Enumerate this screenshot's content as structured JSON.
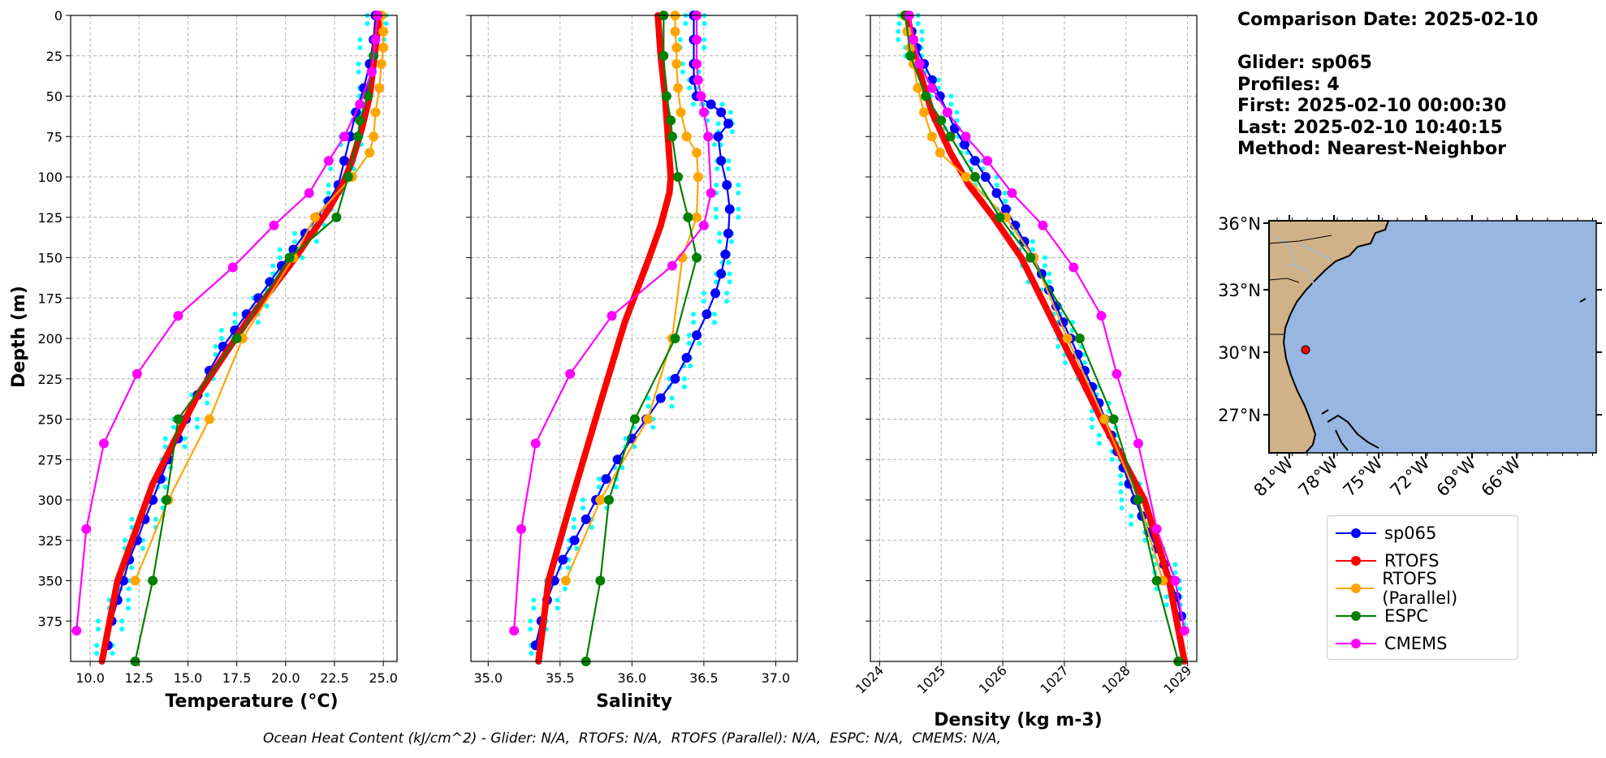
{
  "info": {
    "comparison_date": "Comparison Date: 2025-02-10",
    "glider": "Glider: sp065",
    "profiles": "Profiles: 4",
    "first": "First: 2025-02-10 00:00:30",
    "last": "Last: 2025-02-10 10:40:15",
    "method": "Method: Nearest-Neighbor"
  },
  "footer": "Ocean Heat Content (kJ/cm^2) - Glider: N/A,  RTOFS: N/A,  RTOFS (Parallel): N/A,  ESPC: N/A,  CMEMS: N/A,",
  "legend": [
    {
      "name": "sp065",
      "color": "#0000ff"
    },
    {
      "name": "RTOFS",
      "color": "#ff0000"
    },
    {
      "name": "RTOFS (Parallel)",
      "color": "#ffa500"
    },
    {
      "name": "ESPC",
      "color": "#008000"
    },
    {
      "name": "CMEMS",
      "color": "#ff00ff"
    }
  ],
  "map": {
    "lat_ticks": [
      "36°N",
      "33°N",
      "30°N",
      "27°N"
    ],
    "lon_ticks": [
      "81°W",
      "78°W",
      "75°W",
      "72°W",
      "69°W",
      "66°W"
    ],
    "ocean_color": "#97b6e1",
    "land_color": "#d1b187",
    "glider_marker_color": "#ff0000"
  },
  "chart_data": [
    {
      "type": "line",
      "xlabel": "Temperature (°C)",
      "ylabel": "Depth (m)",
      "xlim": [
        9.0,
        25.7
      ],
      "ylim": [
        400,
        0
      ],
      "x_ticks": [
        "10.0",
        "12.5",
        "15.0",
        "17.5",
        "20.0",
        "22.5",
        "25.0"
      ],
      "y_ticks": [
        "0",
        "25",
        "50",
        "75",
        "100",
        "125",
        "150",
        "175",
        "200",
        "225",
        "250",
        "275",
        "300",
        "325",
        "350",
        "375"
      ],
      "grid": true,
      "series": [
        {
          "name": "sp065",
          "color": "#0000ff",
          "x": [
            24.6,
            24.5,
            24.3,
            24.0,
            23.6,
            23.3,
            23.0,
            22.7,
            22.2,
            21.6,
            21.0,
            20.4,
            19.8,
            19.2,
            18.6,
            18.0,
            17.4,
            16.8,
            16.1,
            15.5,
            14.9,
            14.5,
            14.0,
            13.6,
            13.2,
            12.8,
            12.4,
            12.0,
            11.7,
            11.4,
            11.1,
            10.9
          ],
          "y": [
            0,
            15,
            30,
            45,
            60,
            75,
            90,
            105,
            115,
            125,
            135,
            145,
            155,
            165,
            175,
            185,
            195,
            205,
            220,
            235,
            250,
            262,
            275,
            287,
            300,
            312,
            325,
            337,
            350,
            362,
            375,
            390
          ]
        },
        {
          "name": "RTOFS",
          "color": "#ff0000",
          "x": [
            24.8,
            24.6,
            24.3,
            23.9,
            23.4,
            22.9,
            22.2,
            20.5,
            18.0,
            15.5,
            13.2,
            11.4,
            10.6
          ],
          "y": [
            0,
            20,
            50,
            70,
            90,
            105,
            120,
            150,
            190,
            235,
            290,
            350,
            400
          ]
        },
        {
          "name": "RTOFS (Parallel)",
          "color": "#ffa500",
          "x": [
            24.9,
            25.0,
            25.0,
            24.9,
            24.8,
            24.6,
            24.5,
            24.3,
            23.4,
            21.5,
            20.4,
            17.8,
            16.1,
            14.0,
            12.3
          ],
          "y": [
            0,
            10,
            20,
            30,
            45,
            60,
            75,
            85,
            100,
            125,
            150,
            200,
            250,
            300,
            350
          ]
        },
        {
          "name": "ESPC",
          "color": "#008000",
          "x": [
            24.7,
            24.5,
            24.2,
            23.8,
            23.7,
            23.2,
            22.6,
            20.2,
            17.5,
            14.5,
            13.9,
            13.2,
            12.3
          ],
          "y": [
            0,
            25,
            50,
            65,
            75,
            100,
            125,
            150,
            200,
            250,
            300,
            350,
            400
          ]
        },
        {
          "name": "CMEMS",
          "color": "#ff00ff",
          "x": [
            24.7,
            24.6,
            24.4,
            23.8,
            23.0,
            22.2,
            21.2,
            19.4,
            17.3,
            14.5,
            12.4,
            10.7,
            9.8,
            9.3
          ],
          "y": [
            0,
            15,
            35,
            55,
            75,
            90,
            110,
            130,
            156,
            186,
            222,
            265,
            318,
            381
          ]
        }
      ]
    },
    {
      "type": "line",
      "xlabel": "Salinity",
      "xlim": [
        34.88,
        37.15
      ],
      "ylim": [
        400,
        0
      ],
      "x_ticks": [
        "35.0",
        "35.5",
        "36.0",
        "36.5",
        "37.0"
      ],
      "grid": true,
      "series": [
        {
          "name": "sp065",
          "color": "#0000ff",
          "x": [
            36.43,
            36.43,
            36.43,
            36.43,
            36.45,
            36.55,
            36.62,
            36.67,
            36.6,
            36.62,
            36.66,
            36.68,
            36.67,
            36.65,
            36.62,
            36.58,
            36.52,
            36.45,
            36.38,
            36.3,
            36.2,
            36.1,
            36.0,
            35.9,
            35.82,
            35.75,
            35.68,
            35.6,
            35.52,
            35.46,
            35.41,
            35.37,
            35.33
          ],
          "y": [
            0,
            15,
            30,
            40,
            50,
            55,
            60,
            67,
            75,
            90,
            105,
            120,
            135,
            148,
            160,
            172,
            185,
            198,
            212,
            225,
            237,
            250,
            262,
            275,
            287,
            300,
            312,
            325,
            337,
            350,
            362,
            375,
            390
          ]
        },
        {
          "name": "RTOFS",
          "color": "#ff0000",
          "x": [
            36.18,
            36.2,
            36.23,
            36.25,
            36.27,
            36.26,
            36.2,
            36.12,
            35.95,
            35.78,
            35.58,
            35.42,
            35.35
          ],
          "y": [
            0,
            25,
            50,
            75,
            100,
            110,
            130,
            150,
            190,
            240,
            300,
            350,
            400
          ]
        },
        {
          "name": "RTOFS (Parallel)",
          "color": "#ffa500",
          "x": [
            36.3,
            36.3,
            36.31,
            36.31,
            36.32,
            36.34,
            36.38,
            36.45,
            36.46,
            36.45,
            36.35,
            36.28,
            36.11,
            35.78,
            35.54
          ],
          "y": [
            0,
            10,
            20,
            30,
            45,
            60,
            75,
            85,
            100,
            125,
            150,
            200,
            250,
            300,
            350
          ]
        },
        {
          "name": "ESPC",
          "color": "#008000",
          "x": [
            36.22,
            36.22,
            36.24,
            36.27,
            36.28,
            36.32,
            36.39,
            36.45,
            36.3,
            36.02,
            35.84,
            35.78,
            35.68
          ],
          "y": [
            0,
            25,
            50,
            65,
            75,
            100,
            125,
            150,
            200,
            250,
            300,
            350,
            400
          ]
        },
        {
          "name": "CMEMS",
          "color": "#ff00ff",
          "x": [
            36.45,
            36.45,
            36.45,
            36.46,
            36.48,
            36.5,
            36.53,
            36.55,
            36.5,
            36.28,
            35.86,
            35.57,
            35.33,
            35.23,
            35.18
          ],
          "y": [
            0,
            15,
            30,
            40,
            50,
            60,
            75,
            110,
            130,
            155,
            186,
            222,
            265,
            318,
            381
          ]
        }
      ]
    },
    {
      "type": "line",
      "xlabel": "Density (kg m-3)",
      "xlim": [
        1023.85,
        1029.15
      ],
      "ylim": [
        400,
        0
      ],
      "x_ticks": [
        "1024",
        "1025",
        "1026",
        "1027",
        "1028",
        "1029"
      ],
      "grid": true,
      "series": [
        {
          "name": "sp065",
          "color": "#0000ff",
          "x": [
            1024.45,
            1024.52,
            1024.6,
            1024.72,
            1024.85,
            1024.98,
            1025.1,
            1025.22,
            1025.38,
            1025.55,
            1025.72,
            1025.9,
            1026.05,
            1026.2,
            1026.35,
            1026.5,
            1026.63,
            1026.75,
            1026.87,
            1026.98,
            1027.1,
            1027.22,
            1027.33,
            1027.45,
            1027.56,
            1027.66,
            1027.76,
            1027.86,
            1027.96,
            1028.05,
            1028.15,
            1028.26,
            1028.38,
            1028.5,
            1028.62,
            1028.72,
            1028.82,
            1028.9
          ],
          "y": [
            0,
            10,
            20,
            30,
            40,
            50,
            60,
            70,
            80,
            90,
            100,
            110,
            120,
            130,
            140,
            150,
            160,
            170,
            180,
            190,
            200,
            210,
            220,
            230,
            240,
            250,
            260,
            270,
            280,
            290,
            300,
            310,
            320,
            330,
            340,
            350,
            360,
            372
          ]
        },
        {
          "name": "RTOFS",
          "color": "#ff0000",
          "x": [
            1024.45,
            1024.55,
            1024.65,
            1024.85,
            1025.15,
            1025.45,
            1025.85,
            1026.3,
            1026.95,
            1027.6,
            1028.3,
            1028.7,
            1028.95
          ],
          "y": [
            0,
            20,
            35,
            60,
            85,
            105,
            125,
            150,
            200,
            250,
            300,
            350,
            400
          ]
        },
        {
          "name": "RTOFS (Parallel)",
          "color": "#ffa500",
          "x": [
            1024.4,
            1024.45,
            1024.5,
            1024.55,
            1024.62,
            1024.72,
            1024.85,
            1024.98,
            1025.4,
            1026.05,
            1026.5,
            1027.05,
            1027.65,
            1028.2,
            1028.6
          ],
          "y": [
            0,
            10,
            20,
            30,
            45,
            60,
            75,
            85,
            100,
            125,
            150,
            200,
            250,
            300,
            350
          ]
        },
        {
          "name": "ESPC",
          "color": "#008000",
          "x": [
            1024.42,
            1024.5,
            1024.75,
            1025.0,
            1025.15,
            1025.55,
            1025.95,
            1026.45,
            1027.25,
            1027.8,
            1028.2,
            1028.5,
            1028.85
          ],
          "y": [
            0,
            25,
            50,
            65,
            75,
            100,
            125,
            150,
            200,
            250,
            300,
            350,
            400
          ]
        },
        {
          "name": "CMEMS",
          "color": "#ff00ff",
          "x": [
            1024.48,
            1024.55,
            1024.65,
            1024.85,
            1025.1,
            1025.4,
            1025.75,
            1026.15,
            1026.65,
            1027.15,
            1027.6,
            1027.85,
            1028.2,
            1028.5,
            1028.8,
            1028.95
          ],
          "y": [
            0,
            15,
            30,
            45,
            60,
            75,
            90,
            110,
            130,
            156,
            186,
            222,
            265,
            318,
            350,
            381
          ]
        }
      ]
    }
  ]
}
